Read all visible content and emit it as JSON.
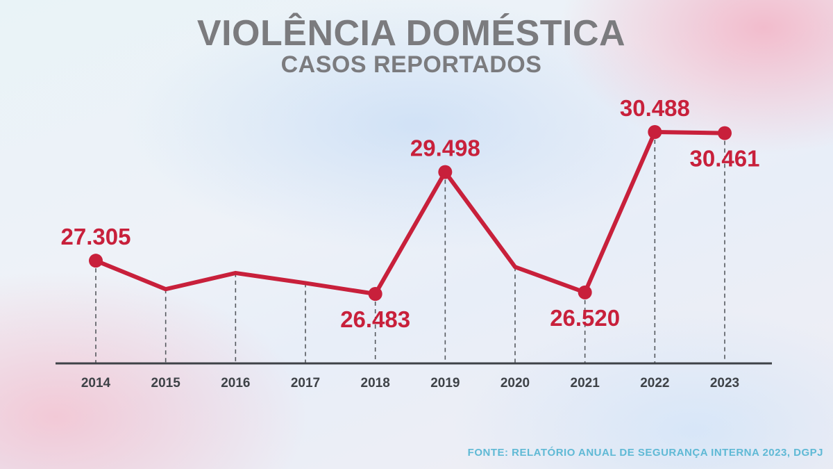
{
  "header": {
    "title": "VIOLÊNCIA DOMÉSTICA",
    "subtitle": "CASOS REPORTADOS"
  },
  "source": "FONTE: RELATÓRIO ANUAL DE SEGURANÇA INTERNA 2023, DGPJ",
  "colors": {
    "line": "#c8203b",
    "label": "#c8203b",
    "axis": "#3e4247",
    "title": "#7b7b7e",
    "source": "#5fb9d5"
  },
  "chart_data": {
    "type": "line",
    "title": "VIOLÊNCIA DOMÉSTICA",
    "subtitle": "CASOS REPORTADOS",
    "x": [
      "2014",
      "2015",
      "2016",
      "2017",
      "2018",
      "2019",
      "2020",
      "2021",
      "2022",
      "2023"
    ],
    "series": [
      {
        "values": [
          27305,
          26600,
          27000,
          26750,
          26483,
          29498,
          27150,
          26520,
          30488,
          30461
        ]
      }
    ],
    "data_labels": [
      {
        "index": 0,
        "text": "27.305",
        "position": "above"
      },
      {
        "index": 4,
        "text": "26.483",
        "position": "below"
      },
      {
        "index": 5,
        "text": "29.498",
        "position": "above"
      },
      {
        "index": 7,
        "text": "26.520",
        "position": "below"
      },
      {
        "index": 8,
        "text": "30.488",
        "position": "above"
      },
      {
        "index": 9,
        "text": "30.461",
        "position": "below"
      }
    ],
    "marked_points": [
      0,
      4,
      5,
      7,
      8,
      9
    ],
    "ylim": [
      24000,
      31000
    ],
    "grid": "dashed vertical drop lines",
    "legend": "none"
  }
}
